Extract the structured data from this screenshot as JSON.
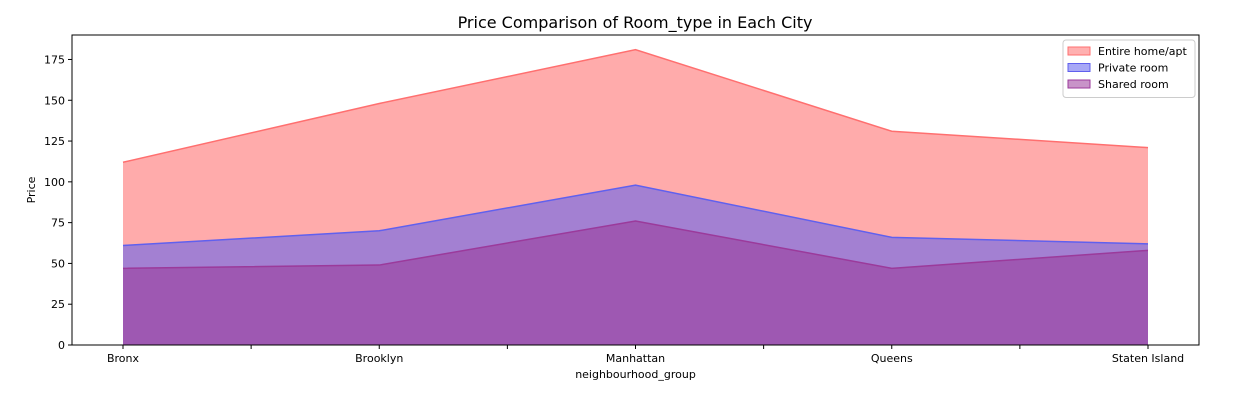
{
  "chart_data": {
    "type": "area",
    "title": "Price Comparison of Room_type in Each City",
    "xlabel": "neighbourhood_group",
    "ylabel": "Price",
    "categories": [
      "Bronx",
      "Brooklyn",
      "Manhattan",
      "Queens",
      "Staten Island"
    ],
    "ylim": [
      0,
      190
    ],
    "yticks": [
      0,
      25,
      50,
      75,
      100,
      125,
      150,
      175
    ],
    "grid": false,
    "legend": "top-right",
    "series": [
      {
        "name": "Entire home/apt",
        "values": [
          112,
          148,
          181,
          131,
          121
        ],
        "color": "#ff6f6f"
      },
      {
        "name": "Private room",
        "values": [
          61,
          70,
          98,
          66,
          62
        ],
        "color": "#6060ee"
      },
      {
        "name": "Shared room",
        "values": [
          47,
          49,
          76,
          47,
          58
        ],
        "color": "#9b3a9b"
      }
    ]
  }
}
